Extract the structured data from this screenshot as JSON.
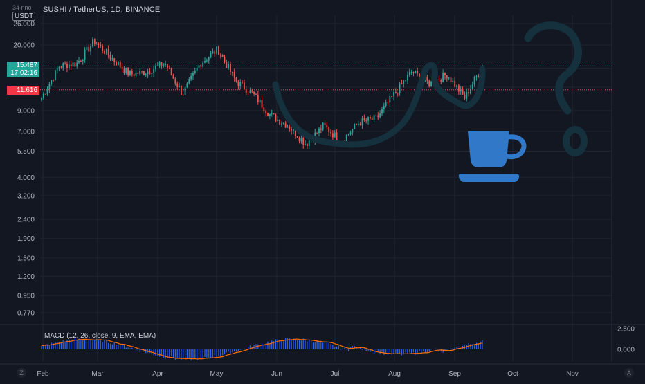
{
  "header": {
    "symbol_line": "SUSHI / TetherUS, 1D, BINANCE",
    "top_clip": "34 nno",
    "unit": "USDT"
  },
  "price_tags": {
    "last_price": "15.487",
    "countdown": "17:02:16",
    "ref_price": "11.616",
    "last_color": "#26a69a",
    "ref_color": "#f23645"
  },
  "macd": {
    "label": "MACD (12, 26, close, 9, EMA, EMA)",
    "ticks": [
      "2.500",
      "0.000"
    ]
  },
  "chart_data": {
    "type": "candlestick",
    "scale": "log",
    "ylim": [
      0.7,
      30
    ],
    "y_ticks": [
      26.0,
      20.0,
      15.0,
      12.0,
      9.0,
      7.0,
      5.5,
      4.0,
      3.2,
      2.4,
      1.9,
      1.5,
      1.2,
      0.95,
      0.77
    ],
    "y_tick_labels": [
      "26.000",
      "20.000",
      "",
      "",
      "9.000",
      "7.000",
      "5.500",
      "4.000",
      "3.200",
      "2.400",
      "1.900",
      "1.500",
      "1.200",
      "0.950",
      "0.770"
    ],
    "x_labels": [
      "Feb",
      "Mar",
      "Apr",
      "May",
      "Jun",
      "Jul",
      "Aug",
      "Sep",
      "Oct",
      "Nov"
    ],
    "anchor_closes": [
      {
        "month": "Feb",
        "close": 10.5
      },
      {
        "month": "Feb",
        "close": 15.5
      },
      {
        "month": "Mar",
        "close": 16.0
      },
      {
        "month": "Mar",
        "close": 21.0
      },
      {
        "month": "Mar",
        "close": 17.0
      },
      {
        "month": "Apr",
        "close": 14.0
      },
      {
        "month": "Apr",
        "close": 14.5
      },
      {
        "month": "Apr",
        "close": 16.0
      },
      {
        "month": "May",
        "close": 11.0
      },
      {
        "month": "May",
        "close": 16.0
      },
      {
        "month": "May",
        "close": 19.0
      },
      {
        "month": "May",
        "close": 13.0
      },
      {
        "month": "Jun",
        "close": 11.0
      },
      {
        "month": "Jun",
        "close": 8.5
      },
      {
        "month": "Jun",
        "close": 7.5
      },
      {
        "month": "Jul",
        "close": 6.0
      },
      {
        "month": "Jul",
        "close": 7.5
      },
      {
        "month": "Jul",
        "close": 6.2
      },
      {
        "month": "Aug",
        "close": 7.8
      },
      {
        "month": "Aug",
        "close": 8.2
      },
      {
        "month": "Aug",
        "close": 11.0
      },
      {
        "month": "Aug",
        "close": 14.5
      },
      {
        "month": "Sep",
        "close": 12.5
      },
      {
        "month": "Sep",
        "close": 14.0
      },
      {
        "month": "Sep",
        "close": 10.5
      },
      {
        "month": "Sep",
        "close": 15.487
      }
    ],
    "last_price": 15.487,
    "ref_price": 11.616,
    "grid": true,
    "annotations": [
      "cup-and-handle sketch",
      "coffee-cup icon",
      "question-mark"
    ]
  },
  "colors": {
    "background": "#131722",
    "grid": "#1f2430",
    "up": "#26a69a",
    "down": "#ef5350",
    "macd_hist": "#2962ff",
    "signal": "#ff6d00",
    "sketch": "#14313d",
    "cup_icon": "#3179c8"
  },
  "icons": {
    "cup": "coffee-cup-icon",
    "question": "question-mark"
  },
  "corners": {
    "left": "Z",
    "right": "A"
  }
}
